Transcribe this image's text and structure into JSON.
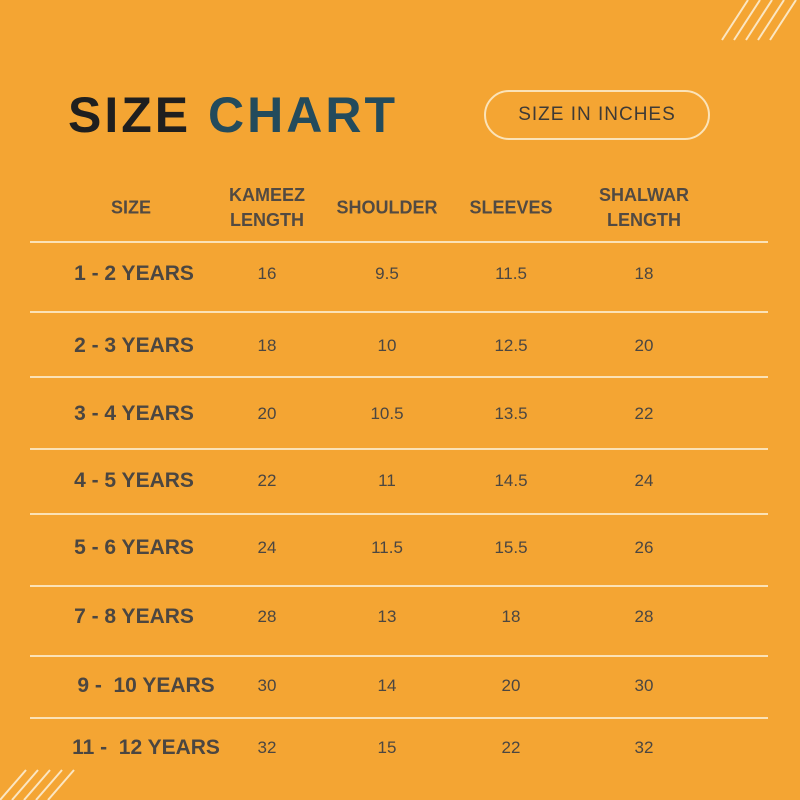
{
  "title": {
    "part1": "SIZE",
    "part2": "CHART"
  },
  "badge": "SIZE IN INCHES",
  "table": {
    "headers": [
      "SIZE",
      "KAMEEZ\nLENGTH",
      "SHOULDER",
      "SLEEVES",
      "SHALWAR\nLENGTH"
    ],
    "rows": [
      [
        "1 - 2 YEARS",
        16,
        9.5,
        11.5,
        18
      ],
      [
        "2 - 3 YEARS",
        18,
        10,
        12.5,
        20
      ],
      [
        "3 - 4 YEARS",
        20,
        10.5,
        13.5,
        22
      ],
      [
        "4 - 5 YEARS",
        22,
        11,
        14.5,
        24
      ],
      [
        "5 - 6 YEARS",
        24,
        11.5,
        15.5,
        26
      ],
      [
        "7 - 8 YEARS",
        28,
        13,
        18,
        28
      ],
      [
        "9 -  10 YEARS",
        30,
        14,
        20,
        30
      ],
      [
        "11 -  12 YEARS",
        32,
        15,
        22,
        32
      ]
    ]
  }
}
